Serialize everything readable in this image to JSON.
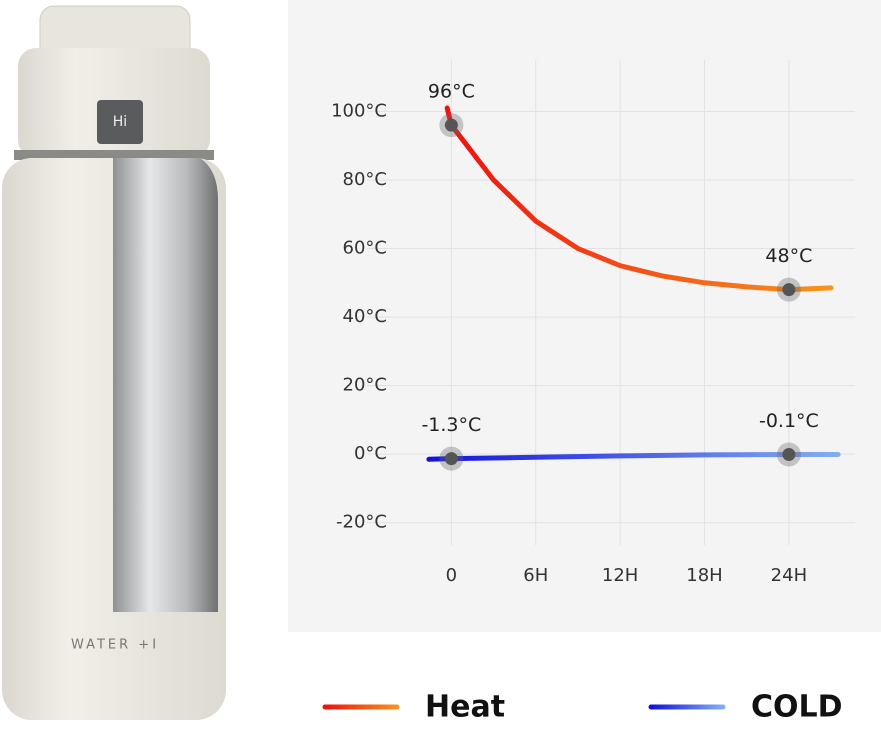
{
  "product": {
    "button": "Hi",
    "brand": "WATER +I"
  },
  "chart_data": {
    "type": "line",
    "xlim": [
      -6,
      28.7
    ],
    "ylim": [
      -26.5,
      115
    ],
    "xticks": [
      {
        "value": 0,
        "label": "0"
      },
      {
        "value": 6,
        "label": "6H"
      },
      {
        "value": 12,
        "label": "12H"
      },
      {
        "value": 18,
        "label": "18H"
      },
      {
        "value": 24,
        "label": "24H"
      }
    ],
    "yticks": [
      {
        "value": -20,
        "label": "-20°C"
      },
      {
        "value": 0,
        "label": "0°C"
      },
      {
        "value": 20,
        "label": "20°C"
      },
      {
        "value": 40,
        "label": "40°C"
      },
      {
        "value": 60,
        "label": "60°C"
      },
      {
        "value": 80,
        "label": "80°C"
      },
      {
        "value": 100,
        "label": "100°C"
      }
    ],
    "grid": true,
    "legend": "bottom",
    "series": [
      {
        "name": "Heat",
        "color": [
          "#ee1111",
          "#f7941d"
        ],
        "x": [
          -0.3,
          0,
          3,
          6,
          9,
          12,
          15,
          18,
          21,
          24,
          27
        ],
        "values": [
          101,
          96,
          80,
          68,
          60,
          55,
          52,
          50,
          48.8,
          48,
          48.5
        ],
        "value_labels": [
          null,
          "96°C",
          null,
          null,
          null,
          null,
          null,
          null,
          null,
          "48°C",
          null
        ]
      },
      {
        "name": "COLD",
        "color": [
          "#1212dd",
          "#85aef0"
        ],
        "x": [
          -1.6,
          0,
          6,
          12,
          18,
          24,
          27.5
        ],
        "values": [
          -1.5,
          -1.3,
          -0.9,
          -0.5,
          -0.2,
          -0.1,
          -0.1
        ],
        "value_labels": [
          null,
          "-1.3°C",
          null,
          null,
          null,
          "-0.1°C",
          null
        ]
      }
    ]
  }
}
